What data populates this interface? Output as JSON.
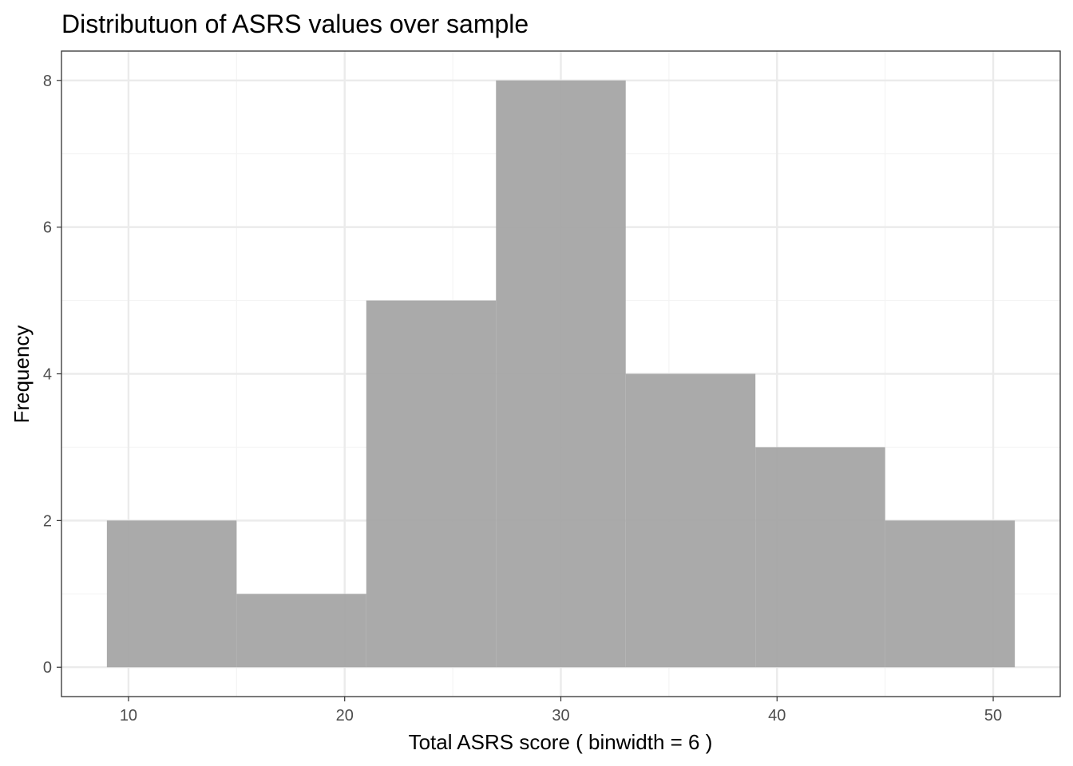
{
  "chart_data": {
    "type": "bar",
    "title": "Distributuon of ASRS values over sample",
    "xlabel": "Total ASRS score ( binwidth =  6 )",
    "ylabel": "Frequency",
    "bins": [
      {
        "x0": 9,
        "x1": 15,
        "count": 2
      },
      {
        "x0": 15,
        "x1": 21,
        "count": 1
      },
      {
        "x0": 21,
        "x1": 27,
        "count": 5
      },
      {
        "x0": 27,
        "x1": 33,
        "count": 8
      },
      {
        "x0": 33,
        "x1": 39,
        "count": 4
      },
      {
        "x0": 39,
        "x1": 45,
        "count": 3
      },
      {
        "x0": 45,
        "x1": 51,
        "count": 2
      }
    ],
    "xlim": [
      6.9,
      53.1
    ],
    "ylim": [
      -0.4,
      8.4
    ],
    "x_ticks": [
      10,
      20,
      30,
      40,
      50
    ],
    "y_ticks": [
      0,
      2,
      4,
      6,
      8
    ],
    "grid": true,
    "colors": {
      "bar_fill": "#a3a3a3",
      "panel_border": "#333333",
      "grid_major": "#ebebeb",
      "grid_minor": "#f4f4f4",
      "tick_text": "#4d4d4d"
    }
  }
}
